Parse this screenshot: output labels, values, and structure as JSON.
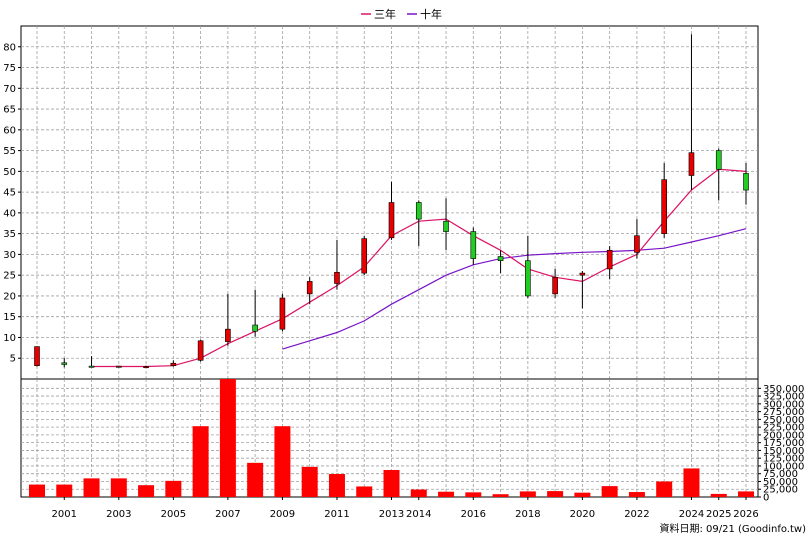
{
  "chart_data": [
    {
      "type": "candlestick",
      "legend": [
        {
          "name": "三年",
          "color": "#dc1464"
        },
        {
          "name": "十年",
          "color": "#7814c8"
        }
      ],
      "ylim": [
        0,
        85
      ],
      "y_ticks": [
        5,
        10,
        15,
        20,
        25,
        30,
        35,
        40,
        45,
        50,
        55,
        60,
        65,
        70,
        75,
        80
      ],
      "grid": true,
      "candles": [
        {
          "year": 2000,
          "open": 3.2,
          "close": 7.8,
          "high": 7.8,
          "low": 3.0
        },
        {
          "year": 2001,
          "open": 3.9,
          "close": 3.5,
          "high": 5.0,
          "low": 2.8
        },
        {
          "year": 2002,
          "open": 3.1,
          "close": 2.9,
          "high": 5.5,
          "low": 2.8
        },
        {
          "year": 2003,
          "open": 3.0,
          "close": 3.1,
          "high": 3.2,
          "low": 2.9
        },
        {
          "year": 2004,
          "open": 3.0,
          "close": 3.0,
          "high": 3.2,
          "low": 2.8
        },
        {
          "year": 2005,
          "open": 3.2,
          "close": 3.8,
          "high": 4.5,
          "low": 3.0
        },
        {
          "year": 2006,
          "open": 4.5,
          "close": 9.2,
          "high": 9.5,
          "low": 4.2
        },
        {
          "year": 2007,
          "open": 9.0,
          "close": 12.0,
          "high": 20.5,
          "low": 8.0
        },
        {
          "year": 2008,
          "open": 13.0,
          "close": 11.5,
          "high": 21.5,
          "low": 10.2
        },
        {
          "year": 2009,
          "open": 12.0,
          "close": 19.5,
          "high": 20.5,
          "low": 11.5
        },
        {
          "year": 2010,
          "open": 20.5,
          "close": 23.5,
          "high": 24.5,
          "low": 18.0
        },
        {
          "year": 2011,
          "open": 23.0,
          "close": 25.7,
          "high": 33.5,
          "low": 21.5
        },
        {
          "year": 2012,
          "open": 25.5,
          "close": 33.8,
          "high": 34.5,
          "low": 25.0
        },
        {
          "year": 2013,
          "open": 34.0,
          "close": 42.5,
          "high": 47.5,
          "low": 33.5
        },
        {
          "year": 2014,
          "open": 42.5,
          "close": 38.5,
          "high": 43.0,
          "low": 32.0
        },
        {
          "year": 2015,
          "open": 38.0,
          "close": 35.5,
          "high": 43.5,
          "low": 31.0
        },
        {
          "year": 2016,
          "open": 35.5,
          "close": 29.0,
          "high": 36.5,
          "low": 27.5
        },
        {
          "year": 2017,
          "open": 29.5,
          "close": 28.5,
          "high": 31.0,
          "low": 25.5
        },
        {
          "year": 2018,
          "open": 28.5,
          "close": 20.0,
          "high": 34.5,
          "low": 19.5
        },
        {
          "year": 2019,
          "open": 20.5,
          "close": 24.5,
          "high": 26.5,
          "low": 19.5
        },
        {
          "year": 2020,
          "open": 25.0,
          "close": 25.5,
          "high": 26.0,
          "low": 17.0
        },
        {
          "year": 2021,
          "open": 26.5,
          "close": 31.0,
          "high": 32.0,
          "low": 24.0
        },
        {
          "year": 2022,
          "open": 30.5,
          "close": 34.5,
          "high": 38.5,
          "low": 29.0
        },
        {
          "year": 2023,
          "open": 35.0,
          "close": 48.0,
          "high": 52.0,
          "low": 34.0
        },
        {
          "year": 2024,
          "open": 49.0,
          "close": 54.5,
          "high": 83.0,
          "low": 45.5
        },
        {
          "year": 2025,
          "open": 55.0,
          "close": 50.5,
          "high": 55.5,
          "low": 43.0
        },
        {
          "year": 2026,
          "open": 49.5,
          "close": 45.5,
          "high": 52.0,
          "low": 42.0
        }
      ],
      "ma_3yr": {
        "x": [
          2002,
          2003,
          2004,
          2005,
          2006,
          2007,
          2008,
          2009,
          2010,
          2011,
          2012,
          2013,
          2014,
          2015,
          2016,
          2017,
          2018,
          2019,
          2020,
          2021,
          2022,
          2023,
          2024,
          2025,
          2026
        ],
        "values": [
          3.0,
          3.0,
          3.0,
          3.2,
          5.0,
          8.5,
          11.5,
          14.5,
          18.5,
          22.5,
          27.0,
          34.5,
          38.0,
          38.5,
          34.5,
          31.0,
          26.5,
          24.5,
          23.5,
          27.0,
          30.0,
          38.0,
          45.5,
          50.5,
          50.0
        ]
      },
      "ma_10yr": {
        "x": [
          2009,
          2010,
          2011,
          2012,
          2013,
          2014,
          2015,
          2016,
          2017,
          2018,
          2019,
          2020,
          2021,
          2022,
          2023,
          2024,
          2025,
          2026
        ],
        "values": [
          7.2,
          9.2,
          11.2,
          14.0,
          18.0,
          21.5,
          25.0,
          27.5,
          29.0,
          29.8,
          30.2,
          30.5,
          30.7,
          31.0,
          31.5,
          33.0,
          34.5,
          36.2
        ]
      }
    },
    {
      "type": "bar",
      "ylim": [
        0,
        380000
      ],
      "y_tick_labels": [
        "0",
        "25,000",
        "50,000",
        "75,000",
        "100,000",
        "125,000",
        "150,000",
        "175,000",
        "200,000",
        "225,000",
        "250,000",
        "275,000",
        "300,000",
        "325,000",
        "350,000"
      ],
      "y_tick_values": [
        0,
        25000,
        50000,
        75000,
        100000,
        125000,
        150000,
        175000,
        200000,
        225000,
        250000,
        275000,
        300000,
        325000,
        350000
      ],
      "x": [
        2000,
        2001,
        2002,
        2003,
        2004,
        2005,
        2006,
        2007,
        2008,
        2009,
        2010,
        2011,
        2012,
        2013,
        2014,
        2015,
        2016,
        2017,
        2018,
        2019,
        2020,
        2021,
        2022,
        2023,
        2024,
        2025,
        2026
      ],
      "values": [
        40000,
        40000,
        60000,
        60000,
        38000,
        52000,
        228000,
        385000,
        110000,
        228000,
        97000,
        74000,
        34000,
        87000,
        24000,
        17000,
        15000,
        9000,
        18000,
        19000,
        14000,
        35000,
        16000,
        50000,
        92000,
        10000,
        18000
      ]
    }
  ],
  "x_tick_labels": [
    "2001",
    "2003",
    "2005",
    "2007",
    "2009",
    "2011",
    "2013",
    "2014",
    "2016",
    "2018",
    "2020",
    "2022",
    "2024",
    "2025",
    "2026"
  ],
  "x_tick_years": [
    2001,
    2003,
    2005,
    2007,
    2009,
    2011,
    2013,
    2014,
    2016,
    2018,
    2020,
    2022,
    2024,
    2025,
    2026
  ],
  "footer": "資料日期: 09/21  (Goodinfo.tw)",
  "colors": {
    "up": "#e60000",
    "down": "#22cc22",
    "volume": "#ff0000",
    "grid": "#a0a0a0",
    "frame": "#000000"
  }
}
